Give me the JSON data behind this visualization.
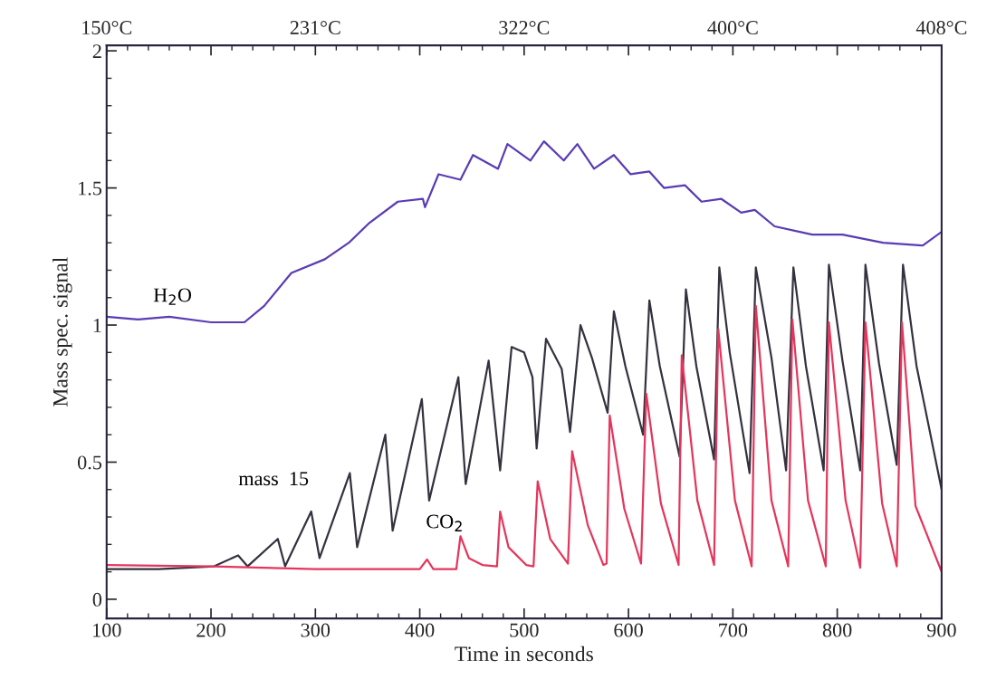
{
  "chart_data": {
    "type": "line",
    "xlabel": "Time in seconds",
    "ylabel": "Mass spec. signal",
    "xlim": [
      100,
      900
    ],
    "xticks": [
      100,
      200,
      300,
      400,
      500,
      600,
      700,
      800,
      900
    ],
    "ylim": [
      -0.07,
      2.02
    ],
    "yticks": [
      0,
      0.5,
      1,
      1.5,
      2
    ],
    "annotations": [
      "150°C",
      "231°C",
      "322°C",
      "400°C",
      "408°C"
    ],
    "grid": false,
    "legend": false,
    "marker": "none",
    "line_style": "solid",
    "series": [
      {
        "name": "H$_{2}$O",
        "color": "#5a3cb4",
        "x": [
          100,
          130,
          160,
          200,
          232,
          251,
          277,
          309,
          332,
          351,
          379,
          403,
          405,
          418,
          439,
          451,
          475,
          484,
          506,
          519,
          538,
          551,
          567,
          586,
          602,
          620,
          634,
          654,
          670,
          689,
          708,
          721,
          740,
          776,
          805,
          844,
          882,
          900
        ],
        "values": [
          1.03,
          1.02,
          1.03,
          1.01,
          1.01,
          1.07,
          1.19,
          1.24,
          1.3,
          1.37,
          1.45,
          1.46,
          1.43,
          1.55,
          1.53,
          1.62,
          1.57,
          1.66,
          1.6,
          1.67,
          1.6,
          1.66,
          1.57,
          1.62,
          1.55,
          1.56,
          1.5,
          1.51,
          1.45,
          1.46,
          1.41,
          1.42,
          1.36,
          1.33,
          1.33,
          1.3,
          1.29,
          1.34
        ]
      },
      {
        "name": "mass  15",
        "color": "#35323f",
        "x": [
          100,
          150,
          203,
          226,
          235,
          264,
          271,
          296,
          304,
          333,
          340,
          367,
          374,
          402,
          409,
          437,
          444,
          466,
          477,
          488,
          500,
          508,
          512,
          521,
          536,
          544,
          554,
          565,
          580,
          586,
          597,
          614,
          620,
          630,
          649,
          655,
          665,
          682,
          687,
          697,
          716,
          722,
          737,
          751,
          758,
          770,
          787,
          792,
          805,
          822,
          827,
          840,
          857,
          863,
          876,
          900
        ],
        "values": [
          0.11,
          0.11,
          0.12,
          0.16,
          0.12,
          0.22,
          0.12,
          0.32,
          0.15,
          0.46,
          0.19,
          0.6,
          0.25,
          0.73,
          0.36,
          0.81,
          0.42,
          0.87,
          0.47,
          0.92,
          0.9,
          0.81,
          0.55,
          0.95,
          0.84,
          0.61,
          1.0,
          0.88,
          0.68,
          1.05,
          0.85,
          0.6,
          1.09,
          0.85,
          0.52,
          1.13,
          0.85,
          0.51,
          1.21,
          0.9,
          0.46,
          1.21,
          0.88,
          0.47,
          1.21,
          0.85,
          0.47,
          1.22,
          0.87,
          0.47,
          1.22,
          0.86,
          0.49,
          1.22,
          0.85,
          0.4
        ]
      },
      {
        "name": "CO$_{2}$",
        "color": "#e4365c",
        "x": [
          100,
          200,
          300,
          400,
          407,
          413,
          435,
          439,
          447,
          460,
          474,
          477,
          485,
          502,
          509,
          513,
          525,
          542,
          546,
          561,
          576,
          579,
          582,
          596,
          612,
          617,
          631,
          648,
          651,
          666,
          682,
          686,
          702,
          718,
          722,
          737,
          753,
          757,
          772,
          789,
          792,
          808,
          822,
          827,
          843,
          857,
          862,
          875,
          900
        ],
        "values": [
          0.125,
          0.12,
          0.11,
          0.11,
          0.145,
          0.11,
          0.11,
          0.23,
          0.15,
          0.125,
          0.12,
          0.32,
          0.19,
          0.125,
          0.12,
          0.43,
          0.22,
          0.13,
          0.54,
          0.27,
          0.125,
          0.13,
          0.67,
          0.33,
          0.13,
          0.75,
          0.35,
          0.125,
          0.89,
          0.36,
          0.125,
          0.985,
          0.36,
          0.12,
          1.07,
          0.36,
          0.12,
          1.02,
          0.36,
          0.12,
          1.01,
          0.36,
          0.115,
          1.01,
          0.35,
          0.12,
          1.01,
          0.34,
          0.1
        ]
      }
    ]
  }
}
